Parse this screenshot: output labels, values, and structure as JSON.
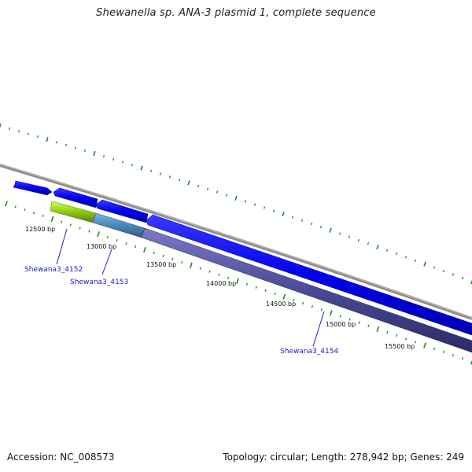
{
  "title": "Shewanella sp. ANA-3 plasmid 1, complete sequence",
  "footer": {
    "accession": "Accession: NC_008573",
    "summary": "Topology: circular; Length: 278,942 bp; Genes: 249"
  },
  "scale_labels": [
    "12500 bp",
    "13000 bp",
    "13500 bp",
    "14000 bp",
    "14500 bp",
    "15000 bp",
    "15500 bp"
  ],
  "gene_labels": [
    "Shewana3_4152",
    "Shewana3_4153",
    "Shewana3_4154"
  ],
  "colors": {
    "backbone": "#888888",
    "cds": "#0000ee",
    "tick": "#1a8a1a",
    "gene_4152": "#8fd40a",
    "gene_4153": "#4a86b8",
    "gene_4154": "#4a4a96",
    "label": "#1a1acc"
  }
}
